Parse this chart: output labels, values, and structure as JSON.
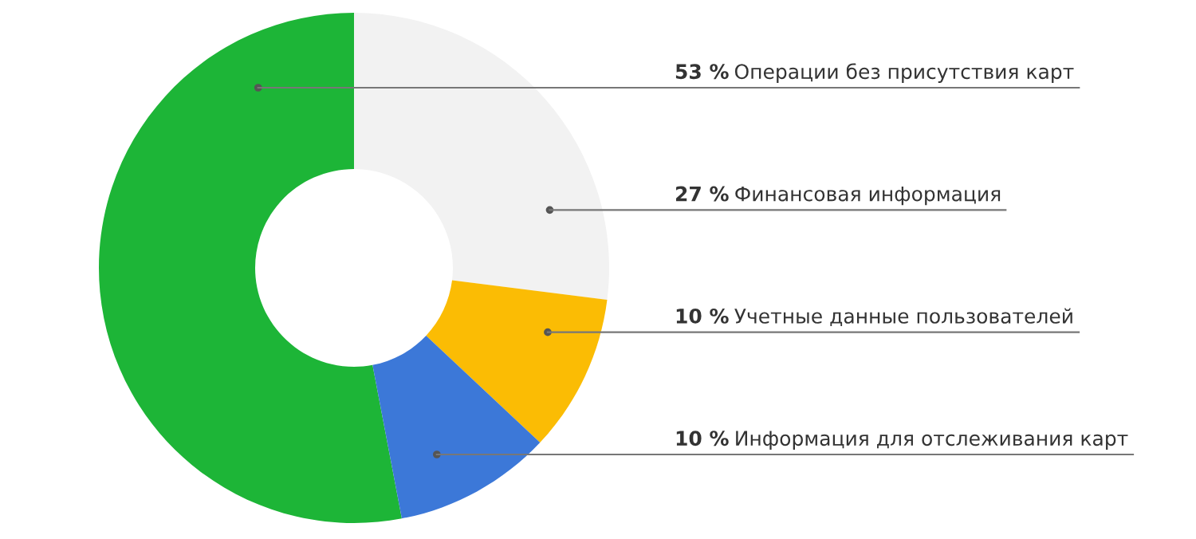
{
  "chart_data": {
    "type": "donut",
    "categories": [
      "Операции без присутствия карт",
      "Финансовая информация",
      "Учетные данные пользователей",
      "Информация для отслеживания карт"
    ],
    "values": [
      53,
      27,
      10,
      10
    ],
    "value_labels": [
      "53 %",
      "27 %",
      "10 %",
      "10 %"
    ],
    "colors": [
      "#1db537",
      "#f2f2f2",
      "#fbbc04",
      "#3c78d8"
    ]
  }
}
